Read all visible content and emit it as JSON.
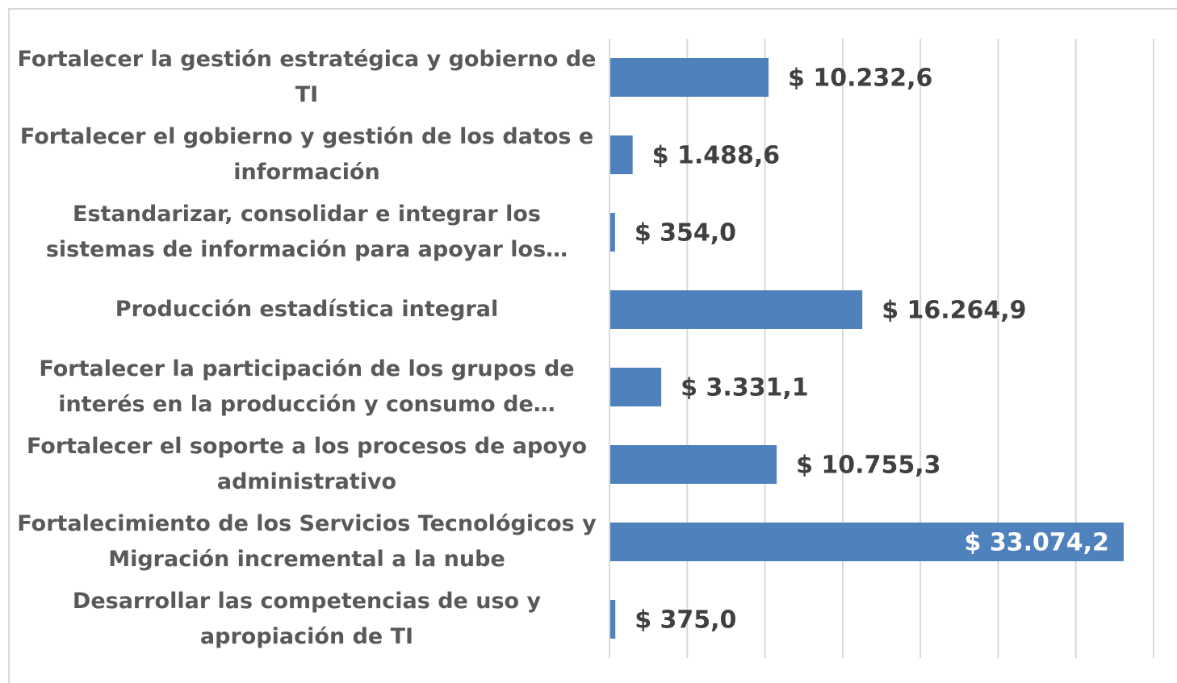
{
  "chart_data": {
    "type": "barh",
    "categories": [
      "Fortalecer la gestión estratégica y gobierno de TI",
      "Fortalecer el gobierno y gestión de los datos e información",
      "Estandarizar, consolidar e integrar los sistemas de información para apoyar los…",
      "Producción estadística integral",
      "Fortalecer la participación de los grupos de interés en la producción y consumo de…",
      "Fortalecer el soporte a los procesos de apoyo administrativo",
      "Fortalecimiento de los Servicios Tecnológicos y Migración incremental a la nube",
      "Desarrollar las competencias de uso y apropiación de TI"
    ],
    "values": [
      10232.6,
      1488.6,
      354.0,
      16264.9,
      3331.1,
      10755.3,
      33074.2,
      375.0
    ],
    "value_labels": [
      "$ 10.232,6",
      "$ 1.488,6",
      "$ 354,0",
      "$ 16.264,9",
      "$ 3.331,1",
      "$ 10.755,3",
      "$ 33.074,2",
      "$ 375,0"
    ],
    "color": "#4f81bd",
    "xlim": [
      0,
      35000
    ],
    "xticks": [
      0,
      5000,
      10000,
      15000,
      20000,
      25000,
      30000,
      35000
    ],
    "grid": true
  }
}
